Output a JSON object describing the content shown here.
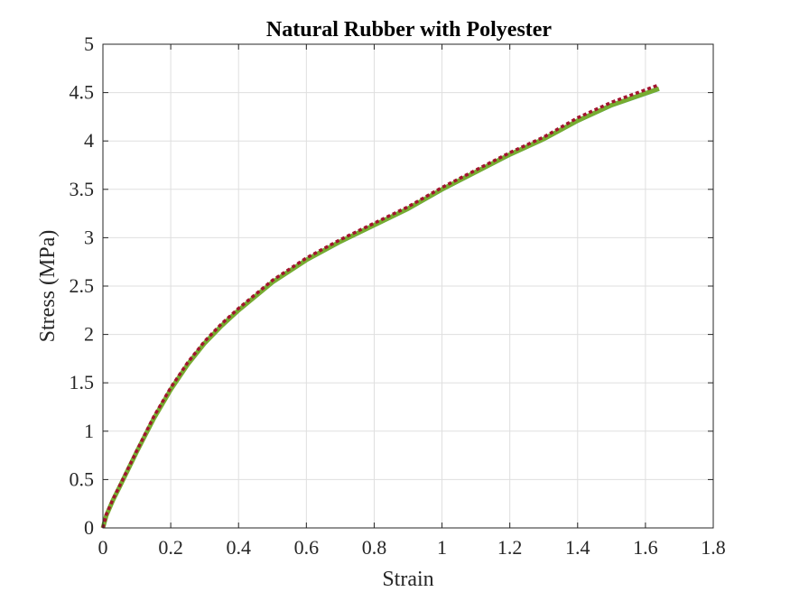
{
  "chart_data": {
    "type": "line",
    "title": "Natural Rubber with Polyester",
    "xlabel": "Strain",
    "ylabel": "Stress (MPa)",
    "xlim": [
      0,
      1.8
    ],
    "ylim": [
      0,
      5
    ],
    "xticks": [
      "0",
      "0.2",
      "0.4",
      "0.6",
      "0.8",
      "1",
      "1.2",
      "1.4",
      "1.6",
      "1.8"
    ],
    "yticks": [
      "0",
      "0.5",
      "1",
      "1.5",
      "2",
      "2.5",
      "3",
      "3.5",
      "4",
      "4.5",
      "5"
    ],
    "grid": true,
    "series": [
      {
        "color": "#4DBEEE",
        "style": "solid",
        "x": [
          0,
          0.01,
          0.03,
          0.05,
          0.1,
          0.15,
          0.2,
          0.25,
          0.3,
          0.35,
          0.4,
          0.5,
          0.6,
          0.7,
          0.8,
          0.9,
          1.0,
          1.1,
          1.2,
          1.3,
          1.4,
          1.5,
          1.64
        ],
        "y": [
          0,
          0.12,
          0.28,
          0.42,
          0.78,
          1.12,
          1.42,
          1.68,
          1.9,
          2.08,
          2.24,
          2.53,
          2.76,
          2.95,
          3.12,
          3.29,
          3.49,
          3.67,
          3.85,
          4.01,
          4.2,
          4.36,
          4.53
        ]
      },
      {
        "color": "#77AC30",
        "style": "solid",
        "x": [
          0,
          0.01,
          0.03,
          0.05,
          0.1,
          0.15,
          0.2,
          0.25,
          0.3,
          0.35,
          0.4,
          0.5,
          0.6,
          0.7,
          0.8,
          0.9,
          1.0,
          1.1,
          1.2,
          1.3,
          1.4,
          1.5,
          1.64
        ],
        "y": [
          0,
          0.13,
          0.29,
          0.43,
          0.79,
          1.13,
          1.43,
          1.69,
          1.91,
          2.09,
          2.25,
          2.54,
          2.77,
          2.96,
          3.13,
          3.3,
          3.5,
          3.68,
          3.86,
          4.02,
          4.21,
          4.37,
          4.54
        ]
      },
      {
        "color": "#A2142F",
        "style": "dotted",
        "x": [
          0,
          0.01,
          0.03,
          0.05,
          0.1,
          0.15,
          0.2,
          0.25,
          0.3,
          0.35,
          0.4,
          0.5,
          0.6,
          0.7,
          0.8,
          0.9,
          1.0,
          1.1,
          1.2,
          1.3,
          1.4,
          1.5,
          1.64
        ],
        "y": [
          0,
          0.14,
          0.3,
          0.44,
          0.8,
          1.15,
          1.45,
          1.71,
          1.93,
          2.11,
          2.27,
          2.56,
          2.79,
          2.98,
          3.15,
          3.32,
          3.52,
          3.7,
          3.88,
          4.04,
          4.24,
          4.4,
          4.58
        ]
      }
    ]
  }
}
